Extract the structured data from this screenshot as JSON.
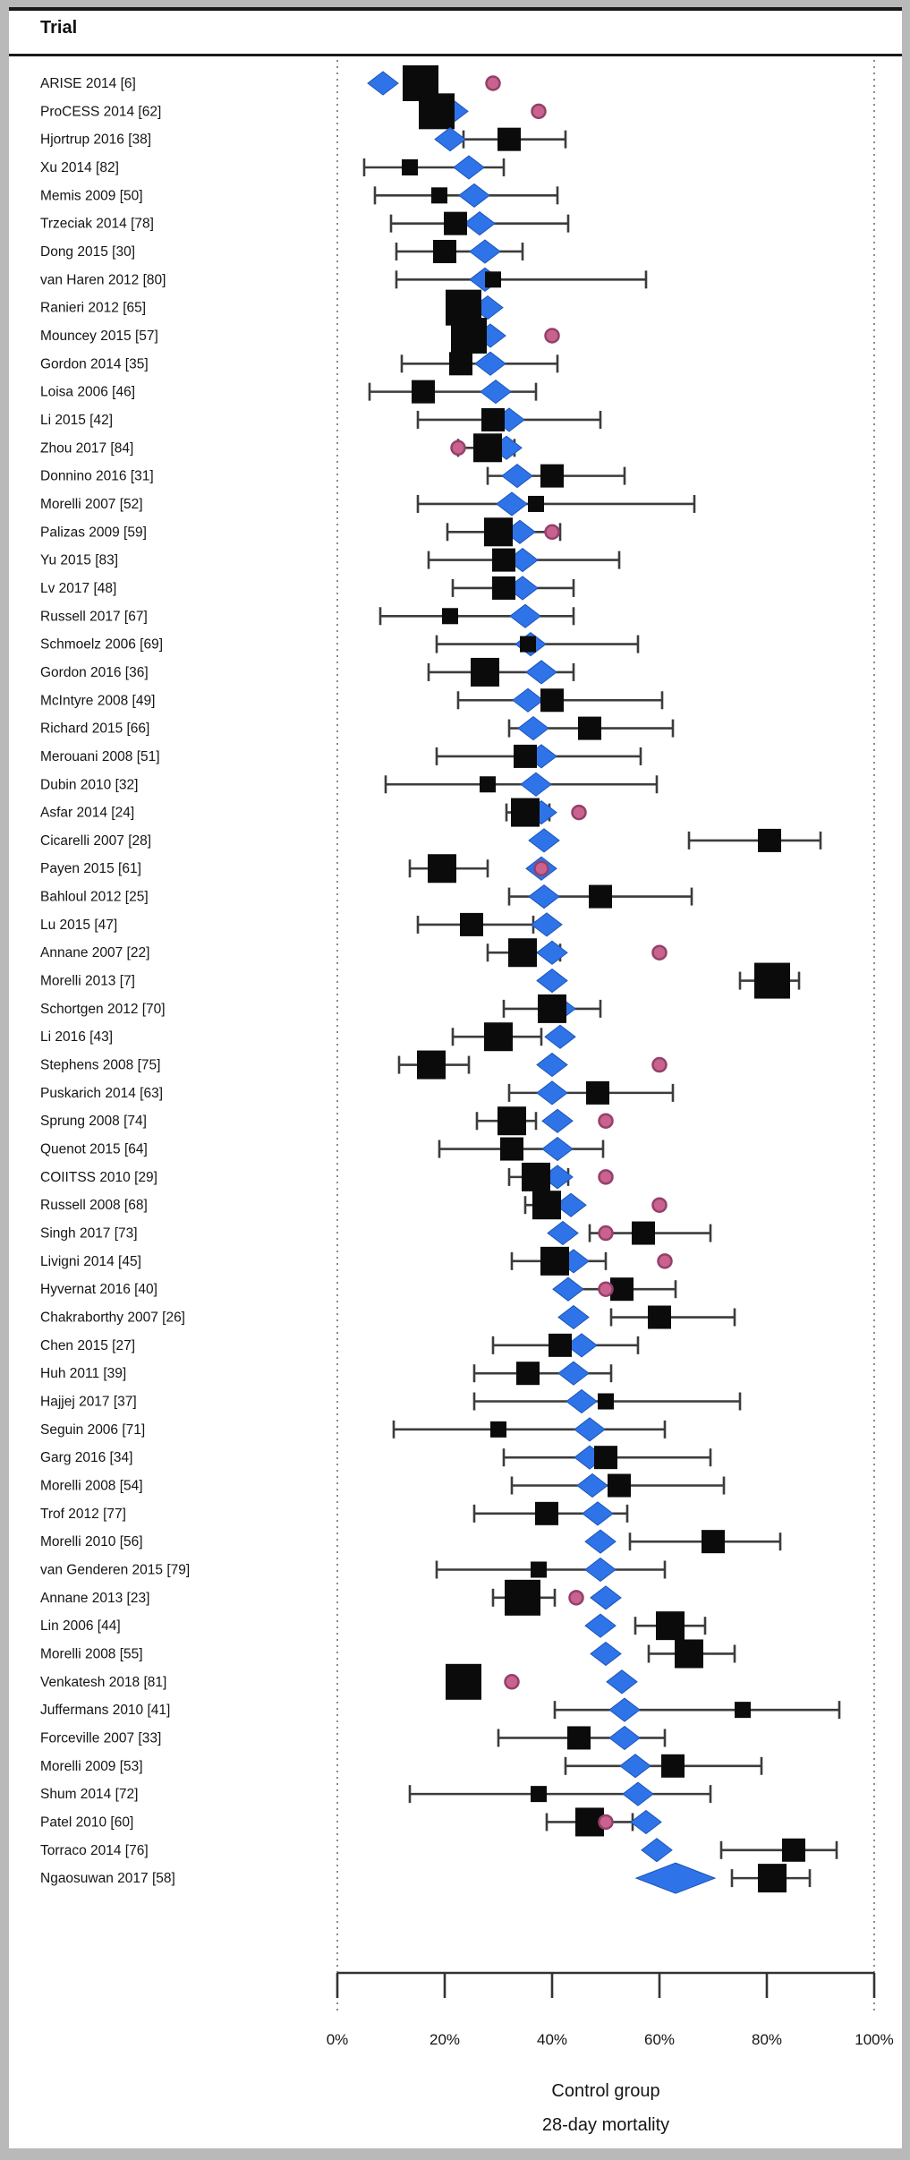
{
  "header": {
    "title": "Trial"
  },
  "axis": {
    "tick_labels": [
      "0%",
      "20%",
      "40%",
      "60%",
      "80%",
      "100%"
    ],
    "tick_values": [
      0,
      20,
      40,
      60,
      80,
      100
    ],
    "title_line1": "Control group",
    "title_line2": "28-day mortality"
  },
  "colors": {
    "diamond": "#2e74e8",
    "square": "#0b0b0b",
    "pink": "#c9628f",
    "pink_edge": "#94406b",
    "whisker": "#3c3c3c",
    "dotted_guide": "#6e6e6e"
  },
  "chart_data": {
    "type": "forest",
    "x_unit": "percent_mortality",
    "xlim": [
      0,
      100
    ],
    "grid": "dotted guides at 0% and 100%",
    "legend": "black square = trial control-group mortality with CI whiskers; blue diamond = cumulative estimate; pink dot = auxiliary estimate",
    "rows": [
      {
        "trial": "ARISE 2014 [6]",
        "square": 15.5,
        "ci": [
          13.5,
          17.5
        ],
        "diamond": 8.5,
        "pink": 29,
        "size": "xl"
      },
      {
        "trial": "ProCESS 2014 [62]",
        "square": 18.5,
        "ci": [
          16,
          21
        ],
        "diamond": 21.5,
        "pink": 37.5,
        "size": "xl"
      },
      {
        "trial": "Hjortrup 2016 [38]",
        "square": 32,
        "ci": [
          23.5,
          42.5
        ],
        "diamond": 21,
        "pink": null,
        "size": "m"
      },
      {
        "trial": "Xu 2014 [82]",
        "square": 13.5,
        "ci": [
          5,
          31
        ],
        "diamond": 24.5,
        "pink": null,
        "size": "s"
      },
      {
        "trial": "Memis 2009 [50]",
        "square": 19,
        "ci": [
          7,
          41
        ],
        "diamond": 25.5,
        "pink": null,
        "size": "s"
      },
      {
        "trial": "Trzeciak 2014 [78]",
        "square": 22,
        "ci": [
          10,
          43
        ],
        "diamond": 26.5,
        "pink": null,
        "size": "m"
      },
      {
        "trial": "Dong 2015 [30]",
        "square": 20,
        "ci": [
          11,
          34.5
        ],
        "diamond": 27.5,
        "pink": null,
        "size": "m"
      },
      {
        "trial": "van Haren 2012 [80]",
        "square": 29,
        "ci": [
          11,
          57.5
        ],
        "diamond": 27.5,
        "pink": null,
        "size": "s"
      },
      {
        "trial": "Ranieri 2012 [65]",
        "square": 23.5,
        "ci": [
          21.5,
          25.5
        ],
        "diamond": 28,
        "pink": null,
        "size": "xl"
      },
      {
        "trial": "Mouncey 2015 [57]",
        "square": 24.5,
        "ci": [
          22.5,
          26.5
        ],
        "diamond": 28.5,
        "pink": 40,
        "size": "xl"
      },
      {
        "trial": "Gordon 2014 [35]",
        "square": 23,
        "ci": [
          12,
          41
        ],
        "diamond": 28.5,
        "pink": null,
        "size": "m"
      },
      {
        "trial": "Loisa 2006 [46]",
        "square": 16,
        "ci": [
          6,
          37
        ],
        "diamond": 29.5,
        "pink": null,
        "size": "m"
      },
      {
        "trial": "Li 2015 [42]",
        "square": 29,
        "ci": [
          15,
          49
        ],
        "diamond": 32,
        "pink": null,
        "size": "m"
      },
      {
        "trial": "Zhou 2017 [84]",
        "square": 28,
        "ci": [
          22.5,
          33
        ],
        "diamond": 31.5,
        "pink": 22.5,
        "size": "l"
      },
      {
        "trial": "Donnino 2016 [31]",
        "square": 40,
        "ci": [
          28,
          53.5
        ],
        "diamond": 33.5,
        "pink": null,
        "size": "m"
      },
      {
        "trial": "Morelli 2007 [52]",
        "square": 37,
        "ci": [
          15,
          66.5
        ],
        "diamond": 32.5,
        "pink": null,
        "size": "s"
      },
      {
        "trial": "Palizas 2009 [59]",
        "square": 30,
        "ci": [
          20.5,
          41.5
        ],
        "diamond": 34,
        "pink": 40,
        "size": "l"
      },
      {
        "trial": "Yu 2015 [83]",
        "square": 31,
        "ci": [
          17,
          52.5
        ],
        "diamond": 34.5,
        "pink": null,
        "size": "m"
      },
      {
        "trial": "Lv 2017 [48]",
        "square": 31,
        "ci": [
          21.5,
          44
        ],
        "diamond": 34.5,
        "pink": null,
        "size": "m"
      },
      {
        "trial": "Russell 2017 [67]",
        "square": 21,
        "ci": [
          8,
          44
        ],
        "diamond": 35,
        "pink": null,
        "size": "s"
      },
      {
        "trial": "Schmoelz 2006 [69]",
        "square": 35.5,
        "ci": [
          18.5,
          56
        ],
        "diamond": 36,
        "pink": null,
        "size": "s"
      },
      {
        "trial": "Gordon 2016 [36]",
        "square": 27.5,
        "ci": [
          17,
          44
        ],
        "diamond": 38,
        "pink": null,
        "size": "l"
      },
      {
        "trial": "McIntyre 2008 [49]",
        "square": 40,
        "ci": [
          22.5,
          60.5
        ],
        "diamond": 35.5,
        "pink": null,
        "size": "m"
      },
      {
        "trial": "Richard 2015 [66]",
        "square": 47,
        "ci": [
          32,
          62.5
        ],
        "diamond": 36.5,
        "pink": null,
        "size": "m"
      },
      {
        "trial": "Merouani 2008 [51]",
        "square": 35,
        "ci": [
          18.5,
          56.5
        ],
        "diamond": 38,
        "pink": null,
        "size": "m"
      },
      {
        "trial": "Dubin 2010 [32]",
        "square": 28,
        "ci": [
          9,
          59.5
        ],
        "diamond": 37,
        "pink": null,
        "size": "s"
      },
      {
        "trial": "Asfar 2014 [24]",
        "square": 35,
        "ci": [
          31.5,
          39.5
        ],
        "diamond": 38,
        "pink": 45,
        "size": "l"
      },
      {
        "trial": "Cicarelli 2007 [28]",
        "square": 80.5,
        "ci": [
          65.5,
          90
        ],
        "diamond": 38.5,
        "pink": null,
        "size": "m"
      },
      {
        "trial": "Payen 2015 [61]",
        "square": 19.5,
        "ci": [
          13.5,
          28
        ],
        "diamond": 38,
        "pink": 38,
        "size": "l"
      },
      {
        "trial": "Bahloul 2012 [25]",
        "square": 49,
        "ci": [
          32,
          66
        ],
        "diamond": 38.5,
        "pink": null,
        "size": "m"
      },
      {
        "trial": "Lu 2015 [47]",
        "square": 25,
        "ci": [
          15,
          36.5
        ],
        "diamond": 39,
        "pink": null,
        "size": "m"
      },
      {
        "trial": "Annane 2007 [22]",
        "square": 34.5,
        "ci": [
          28,
          41.5
        ],
        "diamond": 40,
        "pink": 60,
        "size": "l"
      },
      {
        "trial": "Morelli 2013 [7]",
        "square": 81,
        "ci": [
          75,
          86
        ],
        "diamond": 40,
        "pink": null,
        "size": "xl"
      },
      {
        "trial": "Schortgen 2012 [70]",
        "square": 40,
        "ci": [
          31,
          49
        ],
        "diamond": 41.5,
        "pink": null,
        "size": "l"
      },
      {
        "trial": "Li 2016 [43]",
        "square": 30,
        "ci": [
          21.5,
          38
        ],
        "diamond": 41.5,
        "pink": null,
        "size": "l"
      },
      {
        "trial": "Stephens 2008 [75]",
        "square": 17.5,
        "ci": [
          11.5,
          24.5
        ],
        "diamond": 40,
        "pink": 60,
        "size": "l"
      },
      {
        "trial": "Puskarich 2014 [63]",
        "square": 48.5,
        "ci": [
          32,
          62.5
        ],
        "diamond": 40,
        "pink": null,
        "size": "m"
      },
      {
        "trial": "Sprung 2008 [74]",
        "square": 32.5,
        "ci": [
          26,
          37
        ],
        "diamond": 41,
        "pink": 50,
        "size": "l"
      },
      {
        "trial": "Quenot 2015 [64]",
        "square": 32.5,
        "ci": [
          19,
          49.5
        ],
        "diamond": 41,
        "pink": null,
        "size": "m"
      },
      {
        "trial": "COIITSS 2010 [29]",
        "square": 37,
        "ci": [
          32,
          43
        ],
        "diamond": 41,
        "pink": 50,
        "size": "l"
      },
      {
        "trial": "Russell 2008 [68]",
        "square": 39,
        "ci": [
          35,
          44
        ],
        "diamond": 43.5,
        "pink": 60,
        "size": "l"
      },
      {
        "trial": "Singh 2017 [73]",
        "square": 57,
        "ci": [
          47,
          69.5
        ],
        "diamond": 42,
        "pink": 50,
        "size": "m"
      },
      {
        "trial": "Livigni 2014 [45]",
        "square": 40.5,
        "ci": [
          32.5,
          50
        ],
        "diamond": 44,
        "pink": 61,
        "size": "l"
      },
      {
        "trial": "Hyvernat 2016 [40]",
        "square": 53,
        "ci": [
          43,
          63
        ],
        "diamond": 43,
        "pink": 50,
        "size": "m"
      },
      {
        "trial": "Chakraborthy 2007 [26]",
        "square": 60,
        "ci": [
          51,
          74
        ],
        "diamond": 44,
        "pink": null,
        "size": "m"
      },
      {
        "trial": "Chen 2015 [27]",
        "square": 41.5,
        "ci": [
          29,
          56
        ],
        "diamond": 45.5,
        "pink": null,
        "size": "m"
      },
      {
        "trial": "Huh 2011 [39]",
        "square": 35.5,
        "ci": [
          25.5,
          51
        ],
        "diamond": 44,
        "pink": null,
        "size": "m"
      },
      {
        "trial": "Hajjej 2017 [37]",
        "square": 50,
        "ci": [
          25.5,
          75
        ],
        "diamond": 45.5,
        "pink": null,
        "size": "s"
      },
      {
        "trial": "Seguin 2006 [71]",
        "square": 30,
        "ci": [
          10.5,
          61
        ],
        "diamond": 47,
        "pink": null,
        "size": "s"
      },
      {
        "trial": "Garg 2016 [34]",
        "square": 50,
        "ci": [
          31,
          69.5
        ],
        "diamond": 47,
        "pink": null,
        "size": "m"
      },
      {
        "trial": "Morelli 2008 [54]",
        "square": 52.5,
        "ci": [
          32.5,
          72
        ],
        "diamond": 47.5,
        "pink": null,
        "size": "m"
      },
      {
        "trial": "Trof 2012 [77]",
        "square": 39,
        "ci": [
          25.5,
          54
        ],
        "diamond": 48.5,
        "pink": null,
        "size": "m"
      },
      {
        "trial": "Morelli 2010 [56]",
        "square": 70,
        "ci": [
          54.5,
          82.5
        ],
        "diamond": 49,
        "pink": null,
        "size": "m"
      },
      {
        "trial": "van Genderen 2015 [79]",
        "square": 37.5,
        "ci": [
          18.5,
          61
        ],
        "diamond": 49,
        "pink": null,
        "size": "s"
      },
      {
        "trial": "Annane 2013 [23]",
        "square": 34.5,
        "ci": [
          29,
          40.5
        ],
        "diamond": 50,
        "pink": 44.5,
        "size": "xl"
      },
      {
        "trial": "Lin 2006 [44]",
        "square": 62,
        "ci": [
          55.5,
          68.5
        ],
        "diamond": 49,
        "pink": null,
        "size": "l"
      },
      {
        "trial": "Morelli 2008 [55]",
        "square": 65.5,
        "ci": [
          58,
          74
        ],
        "diamond": 50,
        "pink": null,
        "size": "l"
      },
      {
        "trial": "Venkatesh 2018 [81]",
        "square": 23.5,
        "ci": [
          21.5,
          25.5
        ],
        "diamond": 53,
        "pink": 32.5,
        "size": "xl"
      },
      {
        "trial": "Juffermans 2010 [41]",
        "square": 75.5,
        "ci": [
          40.5,
          93.5
        ],
        "diamond": 53.5,
        "pink": null,
        "size": "s"
      },
      {
        "trial": "Forceville 2007 [33]",
        "square": 45,
        "ci": [
          30,
          61
        ],
        "diamond": 53.5,
        "pink": null,
        "size": "m"
      },
      {
        "trial": "Morelli 2009 [53]",
        "square": 62.5,
        "ci": [
          42.5,
          79
        ],
        "diamond": 55.5,
        "pink": null,
        "size": "m"
      },
      {
        "trial": "Shum 2014 [72]",
        "square": 37.5,
        "ci": [
          13.5,
          69.5
        ],
        "diamond": 56,
        "pink": null,
        "size": "s"
      },
      {
        "trial": "Patel 2010 [60]",
        "square": 47,
        "ci": [
          39,
          55
        ],
        "diamond": 57.5,
        "pink": 50,
        "size": "l"
      },
      {
        "trial": "Torraco 2014 [76]",
        "square": 85,
        "ci": [
          71.5,
          93
        ],
        "diamond": 59.5,
        "pink": null,
        "size": "m"
      },
      {
        "trial": "Ngaosuwan 2017 [58]",
        "square": 81,
        "ci": [
          73.5,
          88
        ],
        "diamond": 63,
        "pink": null,
        "size": "l",
        "diamond_w": 44,
        "diamond_h": 17
      }
    ]
  }
}
